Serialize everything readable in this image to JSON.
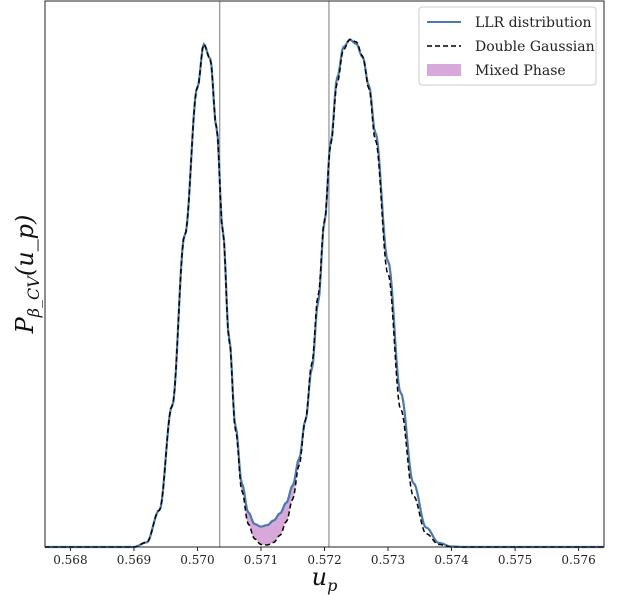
{
  "chart_data": {
    "type": "line",
    "title": "",
    "xlabel": "u_p",
    "ylabel": "P_{β_CV}(u_p)",
    "xlim": [
      0.5676,
      0.5764
    ],
    "ylim": [
      0,
      1.07
    ],
    "grid": false,
    "legend_position": "top-right",
    "x_ticks": [
      "0.568",
      "0.569",
      "0.570",
      "0.571",
      "0.572",
      "0.573",
      "0.574",
      "0.575",
      "0.576"
    ],
    "y_ticks": [],
    "vertical_lines": [
      0.57035,
      0.57207
    ],
    "colors": {
      "llr": "#4a7ab0",
      "gaussian": "#000000",
      "mixed_phase": "#d8a8da",
      "vline": "#999999"
    },
    "series": [
      {
        "name": "LLR distribution",
        "style": "solid",
        "x": [
          0.568,
          0.569,
          0.5692,
          0.5694,
          0.5696,
          0.5698,
          0.57,
          0.5701,
          0.5702,
          0.5703,
          0.5704,
          0.5705,
          0.5706,
          0.5707,
          0.5708,
          0.5709,
          0.571,
          0.5711,
          0.5712,
          0.5713,
          0.5714,
          0.5715,
          0.5716,
          0.5717,
          0.5718,
          0.5719,
          0.572,
          0.5721,
          0.5722,
          0.5723,
          0.5724,
          0.5725,
          0.5726,
          0.5727,
          0.5728,
          0.573,
          0.5732,
          0.5734,
          0.5736,
          0.5738,
          0.574,
          0.5742,
          0.576
        ],
        "values": [
          0.0,
          0.0,
          0.009,
          0.072,
          0.276,
          0.611,
          0.901,
          0.985,
          0.957,
          0.822,
          0.619,
          0.408,
          0.236,
          0.124,
          0.068,
          0.045,
          0.04,
          0.043,
          0.052,
          0.066,
          0.087,
          0.121,
          0.173,
          0.248,
          0.349,
          0.48,
          0.637,
          0.795,
          0.92,
          0.98,
          0.994,
          0.986,
          0.96,
          0.904,
          0.812,
          0.56,
          0.302,
          0.125,
          0.038,
          0.008,
          0.001,
          0.0,
          0.0
        ]
      },
      {
        "name": "Double Gaussian",
        "style": "dashed",
        "x": [
          0.568,
          0.569,
          0.5692,
          0.5694,
          0.5696,
          0.5698,
          0.57,
          0.5701,
          0.5702,
          0.5703,
          0.5704,
          0.5705,
          0.5706,
          0.5707,
          0.5708,
          0.5709,
          0.571,
          0.5711,
          0.5712,
          0.5713,
          0.5714,
          0.5715,
          0.5716,
          0.5717,
          0.5718,
          0.5719,
          0.572,
          0.5721,
          0.5722,
          0.5723,
          0.5724,
          0.5725,
          0.5726,
          0.5727,
          0.5728,
          0.573,
          0.5732,
          0.5734,
          0.5736,
          0.5738,
          0.574,
          0.5742,
          0.576
        ],
        "values": [
          0.0,
          0.0,
          0.009,
          0.072,
          0.276,
          0.611,
          0.901,
          0.985,
          0.957,
          0.822,
          0.618,
          0.404,
          0.228,
          0.11,
          0.045,
          0.016,
          0.005,
          0.004,
          0.009,
          0.023,
          0.05,
          0.094,
          0.16,
          0.249,
          0.36,
          0.493,
          0.64,
          0.79,
          0.91,
          0.975,
          0.995,
          0.99,
          0.962,
          0.898,
          0.798,
          0.535,
          0.27,
          0.1,
          0.026,
          0.005,
          0.0,
          0.0,
          0.0
        ]
      },
      {
        "name": "Mixed Phase",
        "style": "fill",
        "x_range": [
          0.57035,
          0.57207
        ]
      }
    ]
  }
}
